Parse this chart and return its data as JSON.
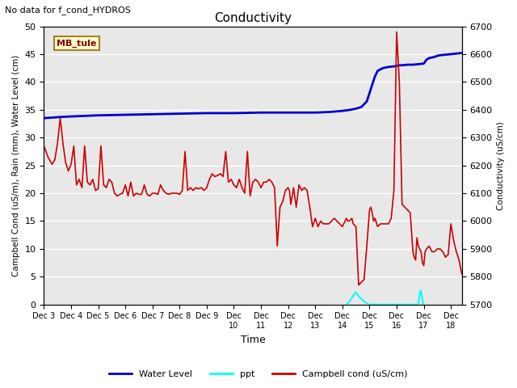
{
  "title": "Conductivity",
  "top_left_text": "No data for f_cond_HYDROS",
  "xlabel": "Time",
  "ylabel_left": "Campbell Cond (uS/m), Rain (mm), Water Level (cm)",
  "ylabel_right": "Conductivity (uS/cm)",
  "annotation_box": "MB_tule",
  "ylim_left": [
    0,
    50
  ],
  "ylim_right": [
    5700,
    6700
  ],
  "background_color": "#e8e8e8",
  "water_level_color": "#0000cc",
  "ppt_color": "#00ffff",
  "campbell_color": "#cc0000",
  "water_level": {
    "x": [
      0.0,
      0.3,
      0.6,
      1.0,
      1.5,
      2.0,
      2.5,
      3.0,
      3.5,
      4.0,
      4.5,
      5.0,
      5.5,
      6.0,
      6.5,
      7.0,
      7.5,
      8.0,
      8.5,
      9.0,
      9.5,
      10.0,
      10.5,
      11.0,
      11.3,
      11.5,
      11.7,
      11.9,
      12.0,
      12.1,
      12.2,
      12.3,
      12.5,
      12.7,
      12.9,
      13.0,
      13.1,
      13.2,
      13.4,
      13.6,
      13.8,
      14.0,
      14.1,
      14.2,
      14.4,
      14.5,
      14.6,
      14.8,
      15.0,
      15.2,
      15.4
    ],
    "y": [
      33.5,
      33.6,
      33.7,
      33.8,
      33.9,
      34.0,
      34.05,
      34.1,
      34.15,
      34.2,
      34.25,
      34.3,
      34.35,
      34.4,
      34.4,
      34.4,
      34.45,
      34.5,
      34.5,
      34.5,
      34.5,
      34.5,
      34.6,
      34.8,
      35.0,
      35.2,
      35.5,
      36.5,
      38.0,
      39.5,
      41.0,
      42.0,
      42.5,
      42.7,
      42.8,
      42.9,
      43.0,
      43.0,
      43.1,
      43.1,
      43.2,
      43.3,
      44.0,
      44.3,
      44.5,
      44.7,
      44.8,
      44.9,
      45.0,
      45.1,
      45.2
    ]
  },
  "ppt": {
    "x": [
      11.15,
      11.2,
      11.25,
      11.3,
      11.35,
      11.4,
      11.45,
      11.5,
      11.55,
      11.6,
      11.65,
      11.7,
      11.75,
      11.8,
      11.85,
      11.9,
      11.95,
      12.0,
      12.05,
      13.75,
      13.8,
      13.82,
      13.84,
      13.86,
      13.88,
      13.9,
      13.92,
      13.94,
      13.96,
      13.98,
      14.0
    ],
    "y": [
      0.0,
      0.2,
      0.5,
      0.8,
      1.2,
      1.6,
      2.0,
      2.2,
      1.8,
      1.5,
      1.2,
      1.0,
      0.8,
      0.6,
      0.4,
      0.3,
      0.1,
      0.0,
      0.0,
      0.0,
      0.2,
      0.8,
      1.5,
      2.2,
      2.5,
      2.3,
      1.8,
      1.2,
      0.6,
      0.2,
      0.0
    ]
  },
  "campbell_cond": {
    "x": [
      0.0,
      0.15,
      0.3,
      0.4,
      0.5,
      0.6,
      0.7,
      0.8,
      0.9,
      1.0,
      1.1,
      1.2,
      1.3,
      1.4,
      1.5,
      1.6,
      1.7,
      1.8,
      1.9,
      2.0,
      2.1,
      2.2,
      2.3,
      2.4,
      2.5,
      2.6,
      2.7,
      2.8,
      2.9,
      3.0,
      3.1,
      3.2,
      3.3,
      3.4,
      3.5,
      3.6,
      3.7,
      3.8,
      3.9,
      4.0,
      4.1,
      4.2,
      4.3,
      4.4,
      4.5,
      4.6,
      4.7,
      4.8,
      4.9,
      5.0,
      5.1,
      5.2,
      5.3,
      5.4,
      5.5,
      5.6,
      5.7,
      5.8,
      5.9,
      6.0,
      6.1,
      6.2,
      6.3,
      6.4,
      6.5,
      6.6,
      6.7,
      6.8,
      6.9,
      7.0,
      7.1,
      7.2,
      7.3,
      7.4,
      7.5,
      7.6,
      7.7,
      7.8,
      7.9,
      8.0,
      8.1,
      8.2,
      8.3,
      8.4,
      8.5,
      8.6,
      8.7,
      8.8,
      8.9,
      9.0,
      9.05,
      9.1,
      9.2,
      9.3,
      9.4,
      9.5,
      9.6,
      9.7,
      9.8,
      9.9,
      10.0,
      10.1,
      10.2,
      10.3,
      10.4,
      10.5,
      10.6,
      10.7,
      10.8,
      10.9,
      11.0,
      11.05,
      11.1,
      11.15,
      11.2,
      11.25,
      11.3,
      11.35,
      11.4,
      11.5,
      11.6,
      11.7,
      11.8,
      11.9,
      12.0,
      12.05,
      12.1,
      12.15,
      12.2,
      12.3,
      12.4,
      12.5,
      12.6,
      12.7,
      12.8,
      12.9,
      13.0,
      13.1,
      13.2,
      13.3,
      13.4,
      13.5,
      13.6,
      13.65,
      13.7,
      13.75,
      13.8,
      13.85,
      13.9,
      13.95,
      14.0,
      14.05,
      14.1,
      14.2,
      14.3,
      14.4,
      14.5,
      14.6,
      14.7,
      14.8,
      14.9,
      15.0,
      15.1,
      15.2,
      15.3,
      15.4
    ],
    "y": [
      28.5,
      26.5,
      25.2,
      26.0,
      29.0,
      33.5,
      29.0,
      25.5,
      24.0,
      25.2,
      28.5,
      21.5,
      22.5,
      21.0,
      28.5,
      22.0,
      21.5,
      22.5,
      20.5,
      20.8,
      28.5,
      21.5,
      21.0,
      22.5,
      22.0,
      20.0,
      19.5,
      19.8,
      20.0,
      21.5,
      19.5,
      22.0,
      19.5,
      20.0,
      19.8,
      19.8,
      21.5,
      19.8,
      19.5,
      20.0,
      20.0,
      19.8,
      21.5,
      20.5,
      20.0,
      19.8,
      20.0,
      20.0,
      20.0,
      19.8,
      20.5,
      27.5,
      20.5,
      21.0,
      20.5,
      21.0,
      20.8,
      21.0,
      20.5,
      21.0,
      22.5,
      23.5,
      23.0,
      23.2,
      23.5,
      23.0,
      27.5,
      22.0,
      22.5,
      21.5,
      21.0,
      22.5,
      21.0,
      20.0,
      27.5,
      19.5,
      22.0,
      22.5,
      22.0,
      21.0,
      22.0,
      22.0,
      22.5,
      22.0,
      21.0,
      10.5,
      17.5,
      18.5,
      20.5,
      21.0,
      20.5,
      18.0,
      21.0,
      17.5,
      21.5,
      20.5,
      21.0,
      20.5,
      17.5,
      14.0,
      15.5,
      14.0,
      15.0,
      14.5,
      14.5,
      14.5,
      15.0,
      15.5,
      15.0,
      14.5,
      14.0,
      14.5,
      15.0,
      15.5,
      15.0,
      15.0,
      15.2,
      15.5,
      14.5,
      14.0,
      3.5,
      4.0,
      4.5,
      10.5,
      17.0,
      17.5,
      16.5,
      15.0,
      15.5,
      14.0,
      14.5,
      14.5,
      14.5,
      14.5,
      15.5,
      20.5,
      49.0,
      40.0,
      18.0,
      17.5,
      17.0,
      16.5,
      9.5,
      8.5,
      8.0,
      12.0,
      10.5,
      10.0,
      9.5,
      7.5,
      7.0,
      9.5,
      10.0,
      10.5,
      9.5,
      9.5,
      10.0,
      10.0,
      9.5,
      8.5,
      9.0,
      14.5,
      11.5,
      9.5,
      8.0,
      5.5
    ]
  }
}
